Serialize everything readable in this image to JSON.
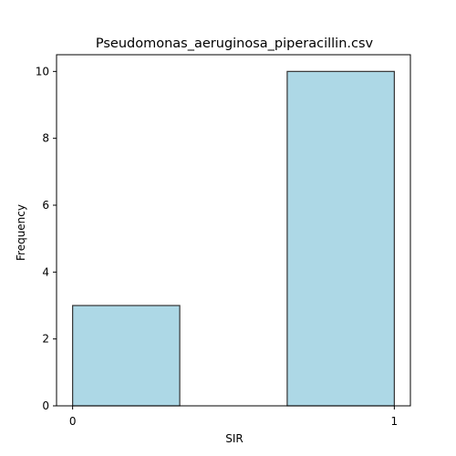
{
  "chart_data": {
    "type": "bar",
    "title": "Pseudomonas_aeruginosa_piperacillin.csv",
    "xlabel": "SIR",
    "ylabel": "Frequency",
    "bins": [
      {
        "start": 0,
        "end": 0.333,
        "value": 3
      },
      {
        "start": 0.333,
        "end": 0.667,
        "value": 0
      },
      {
        "start": 0.667,
        "end": 1,
        "value": 10
      }
    ],
    "xlim": [
      -0.05,
      1.05
    ],
    "ylim": [
      0,
      10.5
    ],
    "xticks": [
      0,
      1
    ],
    "yticks": [
      0,
      2,
      4,
      6,
      8,
      10
    ],
    "grid": false,
    "colors": {
      "bar_fill": "#add8e6",
      "bar_edge": "#333333",
      "axis": "#000000"
    }
  }
}
